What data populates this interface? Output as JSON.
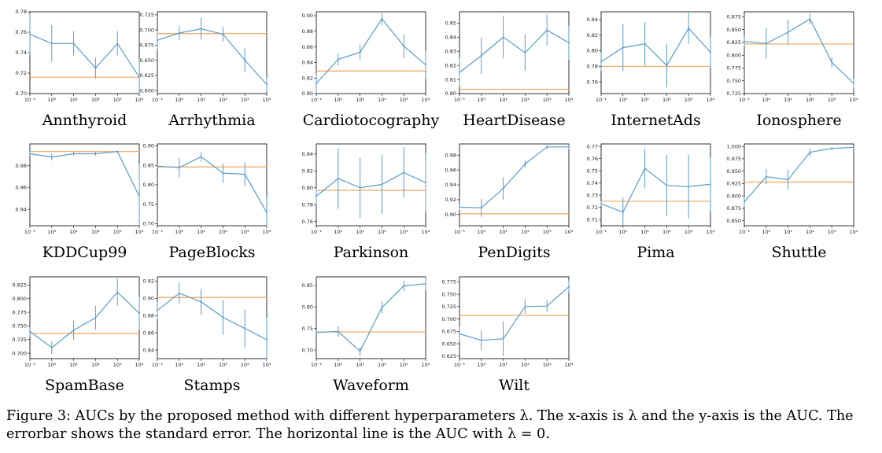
{
  "caption": "Figure 3: AUCs by the proposed method with different hyperparameters λ. The x-axis is λ and the y-axis is the AUC. The errorbar shows the standard error. The horizontal line is the AUC with λ = 0.",
  "colors": {
    "series": "#5b9bc9",
    "baseline": "#f5a65b",
    "axis": "#000000"
  },
  "chart_data": [
    {
      "type": "line",
      "title": "Annthyroid",
      "x_tick_labels": [
        "10⁻¹",
        "10⁰",
        "10¹",
        "10²",
        "10³",
        "10⁴"
      ],
      "ylim": [
        0.7,
        0.78
      ],
      "yticks": [
        0.7,
        0.72,
        0.74,
        0.76,
        0.78
      ],
      "ytick_labels": [
        "0.70",
        "0.72",
        "0.74",
        "0.76",
        "0.78"
      ],
      "values": [
        0.758,
        0.749,
        0.749,
        0.725,
        0.749,
        0.716
      ],
      "errors": [
        0.02,
        0.018,
        0.012,
        0.01,
        0.012,
        0.018
      ],
      "baseline": 0.716
    },
    {
      "type": "line",
      "title": "Arrhythmia",
      "x_tick_labels": [
        "10⁻¹",
        "10⁰",
        "10¹",
        "10²",
        "10³",
        "10⁴"
      ],
      "ylim": [
        0.595,
        0.73
      ],
      "yticks": [
        0.6,
        0.625,
        0.65,
        0.675,
        0.7,
        0.725
      ],
      "ytick_labels": [
        "0.600",
        "0.625",
        "0.650",
        "0.675",
        "0.700",
        "0.725"
      ],
      "values": [
        0.683,
        0.695,
        0.702,
        0.693,
        0.65,
        0.61
      ],
      "errors": [
        0.015,
        0.012,
        0.018,
        0.012,
        0.02,
        0.012
      ],
      "baseline": 0.694
    },
    {
      "type": "line",
      "title": "Cardiotocography",
      "x_tick_labels": [
        "10⁻¹",
        "10⁰",
        "10¹",
        "10²",
        "10³",
        "10⁴"
      ],
      "ylim": [
        0.8,
        0.905
      ],
      "yticks": [
        0.8,
        0.82,
        0.84,
        0.86,
        0.88,
        0.9
      ],
      "ytick_labels": [
        "0.80",
        "0.82",
        "0.84",
        "0.86",
        "0.88",
        "0.90"
      ],
      "values": [
        0.813,
        0.844,
        0.853,
        0.896,
        0.861,
        0.837
      ],
      "errors": [
        0.013,
        0.008,
        0.01,
        0.008,
        0.015,
        0.018
      ],
      "baseline": 0.829
    },
    {
      "type": "line",
      "title": "HeartDisease",
      "x_tick_labels": [
        "10⁻¹",
        "10⁰",
        "10¹",
        "10²",
        "10³",
        "10⁴"
      ],
      "ylim": [
        0.8,
        0.858
      ],
      "yticks": [
        0.8,
        0.81,
        0.82,
        0.83,
        0.84,
        0.85
      ],
      "ytick_labels": [
        "0.80",
        "0.81",
        "0.82",
        "0.83",
        "0.84",
        "0.85"
      ],
      "values": [
        0.815,
        0.827,
        0.84,
        0.829,
        0.845,
        0.836
      ],
      "errors": [
        0.01,
        0.013,
        0.015,
        0.013,
        0.011,
        0.012
      ],
      "baseline": 0.803
    },
    {
      "type": "line",
      "title": "InternetAds",
      "x_tick_labels": [
        "10⁻¹",
        "10⁰",
        "10¹",
        "10²",
        "10³",
        "10⁴"
      ],
      "ylim": [
        0.745,
        0.85
      ],
      "yticks": [
        0.76,
        0.78,
        0.8,
        0.82,
        0.84
      ],
      "ytick_labels": [
        "0.76",
        "0.78",
        "0.80",
        "0.82",
        "0.84"
      ],
      "values": [
        0.786,
        0.804,
        0.809,
        0.781,
        0.829,
        0.798
      ],
      "errors": [
        0.012,
        0.03,
        0.028,
        0.028,
        0.02,
        0.02
      ],
      "baseline": 0.78
    },
    {
      "type": "line",
      "title": "Ionosphere",
      "x_tick_labels": [
        "10⁻¹",
        "10⁰",
        "10¹",
        "10²",
        "10³",
        "10⁴"
      ],
      "ylim": [
        0.725,
        0.885
      ],
      "yticks": [
        0.725,
        0.75,
        0.775,
        0.8,
        0.825,
        0.85,
        0.875
      ],
      "ytick_labels": [
        "0.725",
        "0.750",
        "0.775",
        "0.800",
        "0.825",
        "0.850",
        "0.875"
      ],
      "values": [
        0.827,
        0.823,
        0.845,
        0.871,
        0.786,
        0.745
      ],
      "errors": [
        0.01,
        0.03,
        0.025,
        0.01,
        0.01,
        0.01
      ],
      "baseline": 0.822
    },
    {
      "type": "line",
      "title": "KDDCup99",
      "x_tick_labels": [
        "10⁻¹",
        "10⁰",
        "10¹",
        "10²",
        "10³",
        "10⁴"
      ],
      "ylim": [
        0.925,
        1.0
      ],
      "yticks": [
        0.94,
        0.96,
        0.98
      ],
      "ytick_labels": [
        "0.94",
        "0.96",
        "0.98"
      ],
      "values": [
        0.991,
        0.988,
        0.991,
        0.991,
        0.993,
        0.952
      ],
      "errors": [
        0.002,
        0.003,
        0.002,
        0.002,
        0.001,
        0.03
      ],
      "baseline": 0.993
    },
    {
      "type": "line",
      "title": "PageBlocks",
      "x_tick_labels": [
        "10⁻¹",
        "10⁰",
        "10¹",
        "10²",
        "10³",
        "10⁴"
      ],
      "ylim": [
        0.695,
        0.905
      ],
      "yticks": [
        0.7,
        0.75,
        0.8,
        0.85,
        0.9
      ],
      "ytick_labels": [
        "0.70",
        "0.75",
        "0.80",
        "0.85",
        "0.90"
      ],
      "values": [
        0.848,
        0.844,
        0.872,
        0.83,
        0.827,
        0.729
      ],
      "errors": [
        0.004,
        0.025,
        0.012,
        0.025,
        0.03,
        0.04
      ],
      "baseline": 0.846
    },
    {
      "type": "line",
      "title": "Parkinson",
      "x_tick_labels": [
        "10⁻¹",
        "10⁰",
        "10¹",
        "10²",
        "10³",
        "10⁴"
      ],
      "ylim": [
        0.755,
        0.852
      ],
      "yticks": [
        0.76,
        0.78,
        0.8,
        0.82,
        0.84
      ],
      "ytick_labels": [
        "0.76",
        "0.78",
        "0.80",
        "0.82",
        "0.84"
      ],
      "values": [
        0.79,
        0.811,
        0.8,
        0.804,
        0.818,
        0.806
      ],
      "errors": [
        0.01,
        0.036,
        0.036,
        0.035,
        0.03,
        0.035
      ],
      "baseline": 0.797
    },
    {
      "type": "line",
      "title": "PenDigits",
      "x_tick_labels": [
        "10⁻¹",
        "10⁰",
        "10¹",
        "10²",
        "10³",
        "10⁴"
      ],
      "ylim": [
        0.885,
        0.995
      ],
      "yticks": [
        0.9,
        0.92,
        0.94,
        0.96,
        0.98
      ],
      "ytick_labels": [
        "0.90",
        "0.92",
        "0.94",
        "0.96",
        "0.98"
      ],
      "values": [
        0.91,
        0.909,
        0.935,
        0.968,
        0.991,
        0.991
      ],
      "errors": [
        0.004,
        0.012,
        0.015,
        0.005,
        0.003,
        0.003
      ],
      "baseline": 0.901
    },
    {
      "type": "line",
      "title": "Pima",
      "x_tick_labels": [
        "10⁻¹",
        "10⁰",
        "10¹",
        "10²",
        "10³",
        "10⁴"
      ],
      "ylim": [
        0.705,
        0.772
      ],
      "yticks": [
        0.71,
        0.72,
        0.73,
        0.74,
        0.75,
        0.76,
        0.77
      ],
      "ytick_labels": [
        "0.71",
        "0.72",
        "0.73",
        "0.74",
        "0.75",
        "0.76",
        "0.77"
      ],
      "values": [
        0.723,
        0.716,
        0.752,
        0.738,
        0.737,
        0.739
      ],
      "errors": [
        0.002,
        0.012,
        0.016,
        0.025,
        0.026,
        0.022
      ],
      "baseline": 0.725
    },
    {
      "type": "line",
      "title": "Shuttle",
      "x_tick_labels": [
        "10⁻¹",
        "10⁰",
        "10¹",
        "10²",
        "10³",
        "10⁴"
      ],
      "ylim": [
        0.84,
        1.005
      ],
      "yticks": [
        0.85,
        0.875,
        0.9,
        0.925,
        0.95,
        0.975,
        1.0
      ],
      "ytick_labels": [
        "0.850",
        "0.875",
        "0.900",
        "0.925",
        "0.950",
        "0.975",
        "1.000"
      ],
      "values": [
        0.888,
        0.939,
        0.933,
        0.988,
        0.996,
        0.998
      ],
      "errors": [
        0.01,
        0.015,
        0.02,
        0.008,
        0.003,
        0.002
      ],
      "baseline": 0.928
    },
    {
      "type": "line",
      "title": "SpamBase",
      "x_tick_labels": [
        "10⁻¹",
        "10⁰",
        "10¹",
        "10²",
        "10³",
        "10⁴"
      ],
      "ylim": [
        0.69,
        0.84
      ],
      "yticks": [
        0.7,
        0.725,
        0.75,
        0.775,
        0.8,
        0.825
      ],
      "ytick_labels": [
        "0.700",
        "0.725",
        "0.750",
        "0.775",
        "0.800",
        "0.825"
      ],
      "values": [
        0.74,
        0.71,
        0.742,
        0.765,
        0.812,
        0.773
      ],
      "errors": [
        0.01,
        0.012,
        0.018,
        0.022,
        0.025,
        0.03
      ],
      "baseline": 0.736
    },
    {
      "type": "line",
      "title": "Stamps",
      "x_tick_labels": [
        "10⁻¹",
        "10⁰",
        "10¹",
        "10²",
        "10³",
        "10⁴"
      ],
      "ylim": [
        0.83,
        0.925
      ],
      "yticks": [
        0.84,
        0.86,
        0.88,
        0.9,
        0.92
      ],
      "ytick_labels": [
        "0.84",
        "0.86",
        "0.88",
        "0.90",
        "0.92"
      ],
      "values": [
        0.886,
        0.906,
        0.896,
        0.878,
        0.865,
        0.852
      ],
      "errors": [
        0.01,
        0.012,
        0.015,
        0.02,
        0.022,
        0.026
      ],
      "baseline": 0.901
    },
    {
      "type": "line",
      "title": "Waveform",
      "x_tick_labels": [
        "10⁻¹",
        "10⁰",
        "10¹",
        "10²",
        "10³",
        "10⁴"
      ],
      "ylim": [
        0.68,
        0.87
      ],
      "yticks": [
        0.7,
        0.75,
        0.8,
        0.85
      ],
      "ytick_labels": [
        "0.70",
        "0.75",
        "0.80",
        "0.85"
      ],
      "values": [
        0.741,
        0.743,
        0.697,
        0.799,
        0.849,
        0.854
      ],
      "errors": [
        0.003,
        0.012,
        0.01,
        0.015,
        0.012,
        0.015
      ],
      "baseline": 0.742
    },
    {
      "type": "line",
      "title": "Wilt",
      "x_tick_labels": [
        "10⁻¹",
        "10⁰",
        "10¹",
        "10²",
        "10³",
        "10⁴"
      ],
      "ylim": [
        0.62,
        0.785
      ],
      "yticks": [
        0.625,
        0.65,
        0.675,
        0.7,
        0.725,
        0.75,
        0.775
      ],
      "ytick_labels": [
        "0.625",
        "0.650",
        "0.675",
        "0.700",
        "0.725",
        "0.750",
        "0.775"
      ],
      "values": [
        0.67,
        0.657,
        0.66,
        0.725,
        0.726,
        0.765
      ],
      "errors": [
        0.015,
        0.02,
        0.035,
        0.015,
        0.012,
        0.012
      ],
      "baseline": 0.707
    }
  ]
}
